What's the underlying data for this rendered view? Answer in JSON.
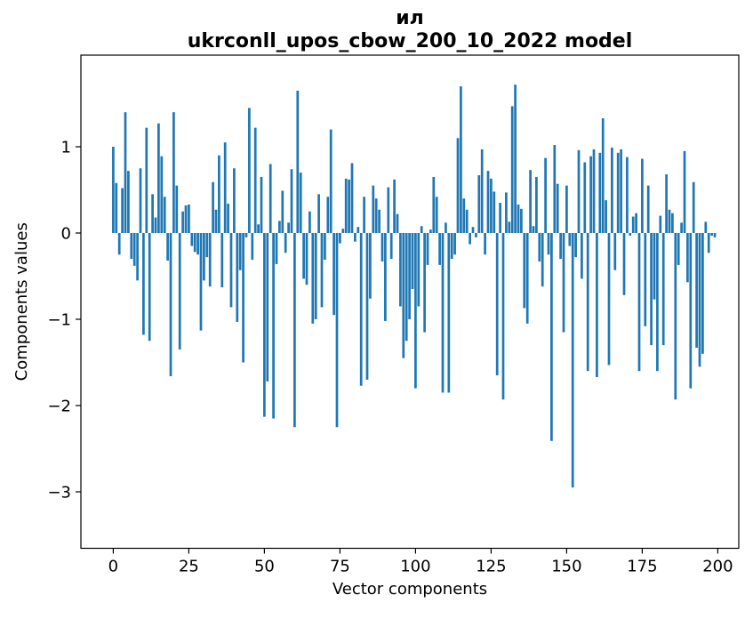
{
  "title": {
    "line1": "ил",
    "line2": "ukrconll_upos_cbow_200_10_2022 model"
  },
  "chart_data": {
    "type": "bar",
    "title": "ил",
    "subtitle": "ukrconll_upos_cbow_200_10_2022 model",
    "xlabel": "Vector components",
    "ylabel": "Components values",
    "bar_color": "#1f77b4",
    "grid": false,
    "legend": "none",
    "x_ticks": [
      0,
      25,
      50,
      75,
      100,
      125,
      150,
      175,
      200
    ],
    "y_ticks": [
      1,
      0,
      -1,
      -2,
      -3
    ],
    "xlim": [
      -10.7,
      207
    ],
    "ylim": [
      -3.65,
      2.06
    ],
    "n_components": 200,
    "x": "component index 0..199",
    "values": [
      1.0,
      0.58,
      -0.25,
      0.52,
      1.4,
      0.72,
      -0.3,
      -0.38,
      -0.55,
      0.75,
      -1.18,
      1.22,
      -1.25,
      0.45,
      0.18,
      1.27,
      0.89,
      0.42,
      -0.32,
      -1.66,
      1.4,
      0.55,
      -1.35,
      0.25,
      0.32,
      0.33,
      -0.15,
      -0.22,
      -0.25,
      -1.13,
      -0.55,
      -0.28,
      -0.62,
      0.59,
      0.27,
      0.9,
      -0.63,
      1.05,
      0.34,
      -0.86,
      0.75,
      -1.03,
      -0.43,
      -1.5,
      -0.05,
      1.45,
      -0.31,
      1.22,
      0.1,
      0.65,
      -2.13,
      -1.72,
      0.8,
      -2.15,
      -0.36,
      0.14,
      0.49,
      -0.23,
      0.12,
      0.74,
      -2.25,
      1.65,
      0.7,
      -0.53,
      -0.6,
      0.25,
      -1.05,
      -1.0,
      0.45,
      -0.86,
      -0.31,
      0.42,
      1.2,
      -0.95,
      -2.25,
      -0.12,
      0.05,
      0.63,
      0.62,
      0.81,
      -0.1,
      0.07,
      -1.77,
      0.42,
      -1.7,
      -0.76,
      0.55,
      0.4,
      0.27,
      -0.33,
      -1.02,
      0.53,
      -0.3,
      0.62,
      0.22,
      -0.85,
      -1.45,
      -1.25,
      -1.0,
      -0.65,
      -1.8,
      -0.85,
      0.08,
      -1.15,
      -0.37,
      0.04,
      0.65,
      0.42,
      -0.37,
      -1.85,
      0.12,
      -1.85,
      -0.3,
      -0.25,
      1.1,
      1.7,
      0.4,
      0.27,
      -0.13,
      0.07,
      -0.05,
      0.67,
      0.97,
      -0.25,
      0.72,
      0.63,
      0.48,
      -1.65,
      0.35,
      -1.93,
      0.47,
      0.13,
      1.47,
      1.72,
      0.33,
      0.28,
      -0.87,
      -1.05,
      0.73,
      0.08,
      0.65,
      -0.33,
      -0.62,
      0.87,
      -0.25,
      -2.41,
      1.02,
      0.57,
      -0.3,
      -1.15,
      0.55,
      -0.15,
      -2.95,
      -0.28,
      0.96,
      -0.53,
      0.82,
      -1.6,
      0.89,
      0.97,
      -1.67,
      0.93,
      1.33,
      0.38,
      -1.53,
      0.99,
      -0.43,
      0.93,
      0.97,
      -0.72,
      0.88,
      -0.03,
      0.19,
      0.23,
      -1.6,
      0.86,
      -1.08,
      0.55,
      -1.3,
      -0.77,
      -1.6,
      0.2,
      -1.3,
      0.68,
      0.27,
      0.23,
      -1.93,
      -0.37,
      0.12,
      0.95,
      -0.57,
      -1.8,
      0.59,
      -1.33,
      -1.55,
      -1.4,
      0.13,
      -0.23,
      -0.03,
      -0.05
    ]
  }
}
